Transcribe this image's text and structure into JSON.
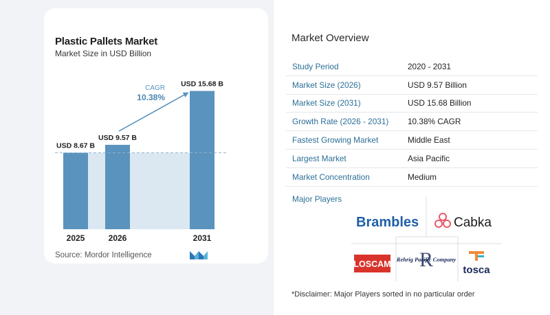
{
  "chart_card": {
    "title": "Plastic Pallets Market",
    "subtitle": "Market Size in USD Billion",
    "source": "Source:  Mordor Intelligence"
  },
  "chart_data": {
    "type": "bar",
    "categories": [
      "2025",
      "2026",
      "2031"
    ],
    "values": [
      8.67,
      9.57,
      15.68
    ],
    "value_labels": [
      "USD 8.67 B",
      "USD 9.57 B",
      "USD 15.68 B"
    ],
    "title": "Plastic Pallets Market",
    "subtitle": "Market Size in USD Billion",
    "ylim": [
      0,
      16.5
    ],
    "grid": false,
    "cagr_label": "CAGR",
    "cagr_value": "10.38%",
    "bar_color": "#5a93bd",
    "bar_color_last": "#5a93bd",
    "reference_band_color": "#dbe8f2"
  },
  "overview": {
    "title": "Market Overview",
    "rows": [
      {
        "key": "Study Period",
        "value": "2020 - 2031"
      },
      {
        "key": "Market Size (2026)",
        "value": "USD 9.57 Billion"
      },
      {
        "key": "Market Size (2031)",
        "value": "USD 15.68 Billion"
      },
      {
        "key": "Growth Rate (2026 - 2031)",
        "value": "10.38% CAGR"
      },
      {
        "key": "Fastest Growing Market",
        "value": "Middle East"
      },
      {
        "key": "Largest Market",
        "value": "Asia Pacific"
      },
      {
        "key": "Market Concentration",
        "value": "Medium"
      }
    ]
  },
  "major_players": {
    "title": "Major Players",
    "logos": [
      {
        "name": "Brambles",
        "text": "Brambles",
        "color": "#1f5fa8"
      },
      {
        "name": "Cabka",
        "text": "Cabka",
        "color": "#e85a6a"
      },
      {
        "name": "Loscam",
        "text": "LOSCAM",
        "color": "#d8342c"
      },
      {
        "name": "Rehrig Pacific Company",
        "text": "Rehrig Pacific Company",
        "color": "#1a2a5a"
      },
      {
        "name": "Tosca",
        "text": "tosca",
        "color": "#1a2a5a"
      }
    ],
    "disclaimer": "*Disclaimer: Major Players sorted in no particular order"
  }
}
